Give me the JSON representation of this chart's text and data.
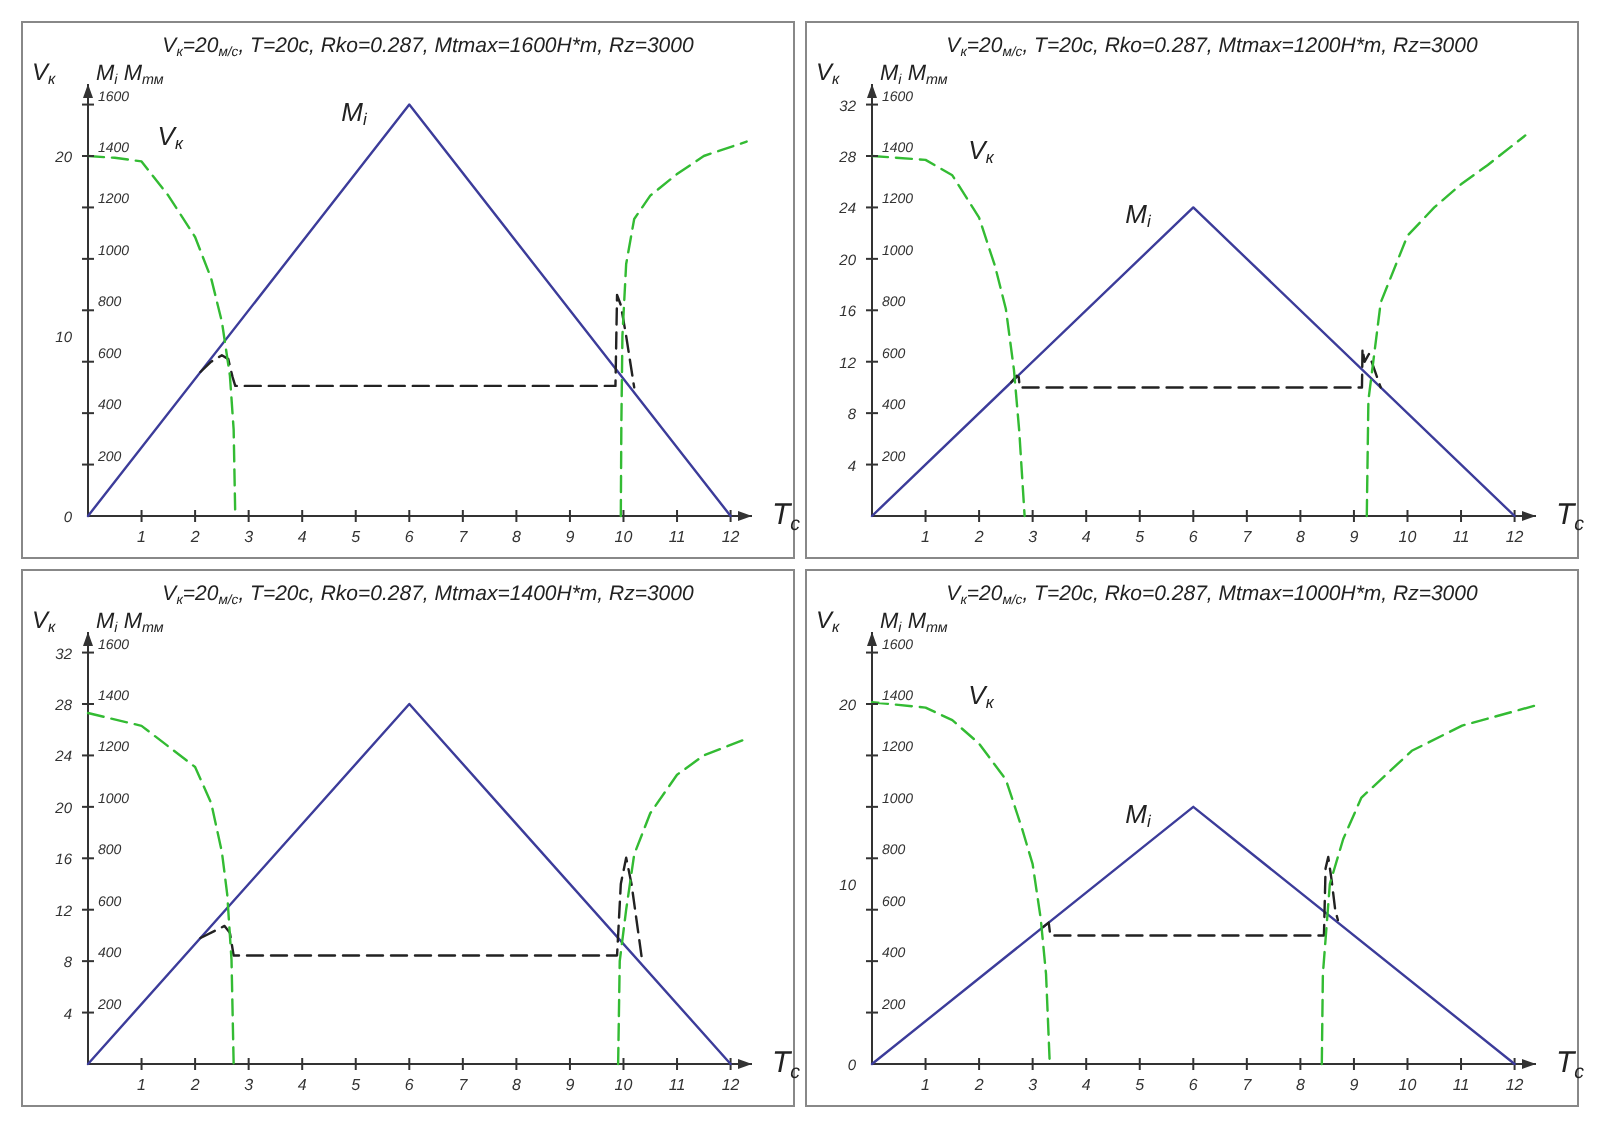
{
  "chart_data": [
    {
      "type": "line",
      "title": "V$_{к}$=20$_{м/с}$, T=20с, Rko=0.287, Mtmax=1600Н*m, Rz=3000",
      "xlabel": "T$_{с}$",
      "ylabel": "M$_{i}$ M$_{тм}$",
      "y2label": "V$_{к}$",
      "xlim": [
        0,
        12.4
      ],
      "xticks": [
        1,
        2,
        3,
        4,
        5,
        6,
        7,
        8,
        9,
        10,
        11,
        12
      ],
      "ylim": [
        0,
        1680
      ],
      "yticks": [
        200,
        400,
        600,
        800,
        1000,
        1200,
        1400,
        1600
      ],
      "y2lim": [
        0,
        24
      ],
      "y2ticks": [
        0,
        10,
        20
      ],
      "grid": false,
      "marker": "none",
      "series": [
        {
          "name": "M$_{i}$",
          "color": "#3c3c9a",
          "line_style": "solid",
          "x": [
            0,
            6,
            12
          ],
          "values": [
            0,
            1600,
            0
          ]
        },
        {
          "color": "#222222",
          "line_style": "dashed",
          "x": [
            2.1,
            2.3,
            2.5,
            2.62,
            2.7,
            2.75,
            9.85,
            9.88,
            9.95,
            10.05,
            10.2
          ],
          "values": [
            560,
            600,
            625,
            610,
            540,
            506,
            506,
            860,
            820,
            700,
            500
          ]
        },
        {
          "name": "V$_{к}$",
          "color": "#33bb33",
          "line_style": "dashed",
          "axis": "y2",
          "x": [
            0,
            0.5,
            1,
            1.5,
            2,
            2.3,
            2.5,
            2.65,
            2.72,
            2.75
          ],
          "values": [
            20,
            19.9,
            19.7,
            17.8,
            15.5,
            13.2,
            10.8,
            7.8,
            4.8,
            0
          ]
        },
        {
          "color": "#33bb33",
          "line_style": "dashed",
          "axis": "y2",
          "x": [
            9.95,
            9.96,
            9.98,
            10.05,
            10.2,
            10.5,
            11,
            11.5,
            12.3
          ],
          "values": [
            0,
            5,
            10,
            14,
            16.5,
            17.8,
            19,
            20,
            20.8
          ]
        }
      ]
    },
    {
      "type": "line",
      "title": "V$_{к}$=20$_{м/с}$, T=20с, Rko=0.287, Mtmax=1200Н*m, Rz=3000",
      "xlabel": "T$_{с}$",
      "ylabel": "M$_{i}$ M$_{тм}$",
      "y2label": "V$_{к}$",
      "xlim": [
        0,
        12.4
      ],
      "xticks": [
        1,
        2,
        3,
        4,
        5,
        6,
        7,
        8,
        9,
        10,
        11,
        12
      ],
      "ylim": [
        0,
        1680
      ],
      "yticks": [
        200,
        400,
        600,
        800,
        1000,
        1200,
        1400,
        1600
      ],
      "y2lim": [
        0,
        33.6
      ],
      "y2ticks": [
        4,
        8,
        12,
        16,
        20,
        24,
        28,
        32
      ],
      "grid": false,
      "marker": "none",
      "series": [
        {
          "name": "M$_{i}$",
          "color": "#3c3c9a",
          "line_style": "solid",
          "x": [
            0,
            6,
            12
          ],
          "values": [
            0,
            1200,
            0
          ]
        },
        {
          "color": "#222222",
          "line_style": "dashed",
          "x": [
            2.6,
            2.7,
            2.74,
            2.76,
            9.15,
            9.16,
            9.2,
            9.28,
            9.5
          ],
          "values": [
            520,
            545,
            540,
            500,
            500,
            650,
            600,
            630,
            500
          ]
        },
        {
          "name": "V$_{к}$",
          "color": "#33bb33",
          "line_style": "dashed",
          "axis": "y2",
          "x": [
            0,
            1,
            1.5,
            2,
            2.3,
            2.5,
            2.65,
            2.75,
            2.85
          ],
          "values": [
            28,
            27.7,
            26.5,
            23.2,
            19.4,
            16.1,
            11.4,
            6.6,
            0
          ]
        },
        {
          "color": "#33bb33",
          "line_style": "dashed",
          "axis": "y2",
          "x": [
            9.24,
            9.27,
            9.5,
            10,
            10.5,
            11,
            11.5,
            12.2
          ],
          "values": [
            0,
            9,
            16.6,
            21.8,
            24,
            25.8,
            27.3,
            29.6
          ]
        }
      ]
    },
    {
      "type": "line",
      "title": "V$_{к}$=20$_{м/с}$, T=20с, Rko=0.287, Mtmax=1400Н*m, Rz=3000",
      "xlabel": "T$_{с}$",
      "ylabel": "M$_{i}$ M$_{тм}$",
      "y2label": "V$_{к}$",
      "xlim": [
        0,
        12.4
      ],
      "xticks": [
        1,
        2,
        3,
        4,
        5,
        6,
        7,
        8,
        9,
        10,
        11,
        12
      ],
      "ylim": [
        0,
        1680
      ],
      "yticks": [
        200,
        400,
        600,
        800,
        1000,
        1200,
        1400,
        1600
      ],
      "y2lim": [
        0,
        33.6
      ],
      "y2ticks": [
        4,
        8,
        12,
        16,
        20,
        24,
        28,
        32
      ],
      "grid": false,
      "marker": "none",
      "series": [
        {
          "color": "#3c3c9a",
          "line_style": "solid",
          "x": [
            0,
            6,
            12
          ],
          "values": [
            0,
            1400,
            0
          ]
        },
        {
          "color": "#222222",
          "line_style": "dashed",
          "x": [
            2.1,
            2.55,
            2.65,
            2.72,
            9.88,
            9.95,
            10.05,
            10.15,
            10.35
          ],
          "values": [
            490,
            537,
            510,
            422,
            422,
            700,
            802,
            700,
            400
          ]
        },
        {
          "color": "#33bb33",
          "line_style": "dashed",
          "axis": "y2",
          "x": [
            0,
            1,
            2,
            2.3,
            2.5,
            2.6,
            2.68,
            2.72
          ],
          "values": [
            27.3,
            26.3,
            23.1,
            20.3,
            16.5,
            13.2,
            8.1,
            0
          ]
        },
        {
          "color": "#33bb33",
          "line_style": "dashed",
          "axis": "y2",
          "x": [
            9.9,
            9.93,
            10.05,
            10.2,
            10.5,
            11,
            11.5,
            12.3
          ],
          "values": [
            0,
            8,
            12,
            16.3,
            19.5,
            22.5,
            24,
            25.3
          ]
        }
      ]
    },
    {
      "type": "line",
      "title": "V$_{к}$=20$_{м/с}$, T=20с, Rko=0.287, Mtmax=1000Н*m, Rz=3000",
      "xlabel": "T$_{с}$",
      "ylabel": "M$_{i}$ M$_{тм}$",
      "y2label": "V$_{к}$",
      "xlim": [
        0,
        12.4
      ],
      "xticks": [
        1,
        2,
        3,
        4,
        5,
        6,
        7,
        8,
        9,
        10,
        11,
        12
      ],
      "ylim": [
        0,
        1680
      ],
      "yticks": [
        200,
        400,
        600,
        800,
        1000,
        1200,
        1400,
        1600
      ],
      "y2lim": [
        0,
        24
      ],
      "y2ticks": [
        0,
        10,
        20
      ],
      "grid": false,
      "marker": "none",
      "series": [
        {
          "name": "M$_{i}$",
          "color": "#3c3c9a",
          "line_style": "solid",
          "x": [
            0,
            6,
            12
          ],
          "values": [
            0,
            1000,
            0
          ]
        },
        {
          "color": "#222222",
          "line_style": "dashed",
          "x": [
            3.2,
            3.3,
            3.33,
            8.44,
            8.47,
            8.52,
            8.58,
            8.65,
            8.7
          ],
          "values": [
            533,
            550,
            500,
            500,
            760,
            805,
            720,
            600,
            560
          ]
        },
        {
          "name": "V$_{к}$",
          "color": "#33bb33",
          "line_style": "dashed",
          "axis": "y2",
          "x": [
            0,
            1,
            1.5,
            2,
            2.5,
            2.8,
            3,
            3.15,
            3.25,
            3.32
          ],
          "values": [
            20.1,
            19.8,
            19.1,
            17.8,
            15.8,
            13.1,
            11.1,
            8.1,
            5,
            0
          ]
        },
        {
          "color": "#33bb33",
          "line_style": "dashed",
          "axis": "y2",
          "x": [
            8.4,
            8.42,
            8.55,
            8.8,
            9.14,
            10.08,
            11.02,
            12.37
          ],
          "values": [
            0,
            5,
            10,
            12.5,
            14.8,
            17.4,
            18.8,
            19.9
          ]
        }
      ]
    }
  ]
}
